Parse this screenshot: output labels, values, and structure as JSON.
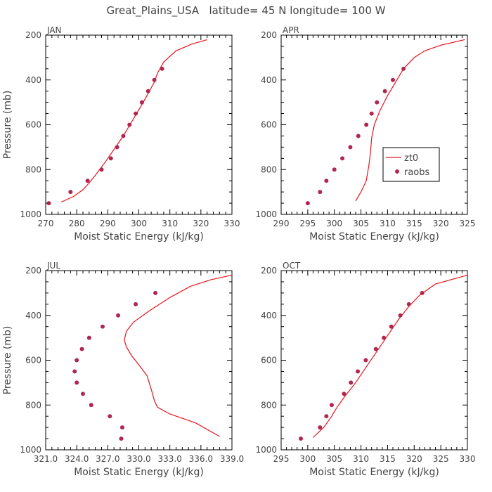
{
  "title": "Great_Plains_USA   latitude= 45 N longitude= 100 W",
  "legend": {
    "model_label": "zt0",
    "obs_label": "raobs",
    "placement": "inside APR panel, lower right"
  },
  "colors": {
    "model_line": "#e8141b",
    "obs_points": "#b0264f",
    "axes": "#000000",
    "text": "#444444"
  },
  "chart_data": [
    {
      "type": "line",
      "panel": "JAN",
      "title": "JAN",
      "xlabel": "Moist Static Energy (kJ/kg)",
      "ylabel": "Pressure (mb)",
      "xlim": [
        270,
        330
      ],
      "ylim": [
        1000,
        200
      ],
      "xticks": [
        270,
        280,
        290,
        300,
        310,
        320,
        330
      ],
      "xtick_labels": [
        "270",
        "280",
        "290",
        "300",
        "310",
        "320",
        "330"
      ],
      "yticks": [
        200,
        400,
        600,
        800,
        1000
      ],
      "ytick_labels": [
        "200",
        "400",
        "600",
        "800",
        "1000"
      ],
      "series": [
        {
          "name": "zt0",
          "x": [
            275,
            279,
            282,
            284,
            286,
            289,
            292,
            295,
            298,
            301,
            303,
            305,
            306,
            308,
            312,
            317,
            322
          ],
          "y": [
            945,
            920,
            890,
            860,
            825,
            770,
            710,
            650,
            580,
            510,
            460,
            410,
            370,
            320,
            270,
            240,
            220
          ]
        },
        {
          "name": "raobs",
          "x": [
            271,
            278,
            283.5,
            288,
            291,
            293,
            295,
            297,
            299,
            301,
            303,
            305,
            307.5
          ],
          "y": [
            950,
            900,
            850,
            800,
            750,
            700,
            650,
            600,
            550,
            500,
            450,
            400,
            350
          ]
        }
      ]
    },
    {
      "type": "line",
      "panel": "APR",
      "title": "APR",
      "xlabel": "Moist Static Energy (kJ/kg)",
      "ylabel": "",
      "xlim": [
        290,
        325
      ],
      "ylim": [
        1000,
        200
      ],
      "xticks": [
        290,
        295,
        300,
        305,
        310,
        315,
        320,
        325
      ],
      "xtick_labels": [
        "290",
        "295",
        "300",
        "305",
        "310",
        "315",
        "320",
        "325"
      ],
      "yticks": [
        200,
        400,
        600,
        800,
        1000
      ],
      "ytick_labels": [
        "200",
        "400",
        "600",
        "800",
        "1000"
      ],
      "series": [
        {
          "name": "zt0",
          "x": [
            304,
            305,
            306,
            306.5,
            306.8,
            307,
            307.5,
            308.5,
            310,
            311.5,
            313,
            315,
            317,
            320,
            324.5
          ],
          "y": [
            940,
            900,
            850,
            780,
            720,
            660,
            600,
            540,
            470,
            410,
            350,
            300,
            270,
            245,
            220
          ]
        },
        {
          "name": "raobs",
          "x": [
            295,
            297.3,
            298.5,
            300,
            301.5,
            303,
            304.5,
            306,
            307,
            308,
            309.5,
            311,
            313
          ],
          "y": [
            950,
            900,
            850,
            800,
            750,
            700,
            650,
            600,
            550,
            500,
            450,
            400,
            350
          ]
        }
      ]
    },
    {
      "type": "line",
      "panel": "JUL",
      "title": "JUL",
      "xlabel": "Moist Static Energy (kJ/kg)",
      "ylabel": "Pressure (mb)",
      "xlim": [
        321.0,
        339.0
      ],
      "ylim": [
        1000,
        200
      ],
      "xticks": [
        321,
        324,
        327,
        330,
        333,
        336,
        339
      ],
      "xtick_labels": [
        "321.0",
        "324.0",
        "327.0",
        "330.0",
        "333.0",
        "336.0",
        "339.0"
      ],
      "yticks": [
        200,
        400,
        600,
        800,
        1000
      ],
      "ytick_labels": [
        "200",
        "400",
        "600",
        "800",
        "1000"
      ],
      "series": [
        {
          "name": "zt0",
          "x": [
            337.8,
            335.5,
            333,
            331.8,
            331.5,
            331.2,
            330.8,
            330,
            329.3,
            328.8,
            328.6,
            328.8,
            329.5,
            331,
            333,
            335,
            337,
            339
          ],
          "y": [
            940,
            880,
            840,
            810,
            780,
            730,
            670,
            620,
            580,
            540,
            510,
            470,
            430,
            380,
            320,
            270,
            240,
            220
          ]
        },
        {
          "name": "raobs",
          "x": [
            328.3,
            328.4,
            327.2,
            325.4,
            324.6,
            324,
            323.8,
            324,
            324.5,
            325.2,
            326.5,
            328,
            329.7,
            331.6
          ],
          "y": [
            950,
            900,
            850,
            800,
            750,
            700,
            650,
            600,
            550,
            500,
            450,
            400,
            350,
            300
          ]
        }
      ]
    },
    {
      "type": "line",
      "panel": "OCT",
      "title": "OCT",
      "xlabel": "Moist Static Energy (kJ/kg)",
      "ylabel": "",
      "xlim": [
        295,
        330
      ],
      "ylim": [
        1000,
        200
      ],
      "xticks": [
        295,
        300,
        305,
        310,
        315,
        320,
        325,
        330
      ],
      "xtick_labels": [
        "295",
        "300",
        "305",
        "310",
        "315",
        "320",
        "325",
        "330"
      ],
      "yticks": [
        200,
        400,
        600,
        800,
        1000
      ],
      "ytick_labels": [
        "200",
        "400",
        "600",
        "800",
        "1000"
      ],
      "series": [
        {
          "name": "zt0",
          "x": [
            301,
            303,
            304.5,
            305.5,
            307,
            309,
            311,
            313,
            315,
            317,
            319,
            321,
            324,
            330
          ],
          "y": [
            945,
            900,
            850,
            810,
            760,
            700,
            630,
            560,
            490,
            420,
            360,
            310,
            260,
            220
          ]
        },
        {
          "name": "raobs",
          "x": [
            298.7,
            302.3,
            303.5,
            304.5,
            306.8,
            308.1,
            309.4,
            310.9,
            312.8,
            314.3,
            315.7,
            317.4,
            319,
            321.5
          ],
          "y": [
            950,
            900,
            850,
            800,
            750,
            700,
            650,
            600,
            550,
            500,
            450,
            400,
            350,
            300
          ]
        }
      ]
    }
  ]
}
